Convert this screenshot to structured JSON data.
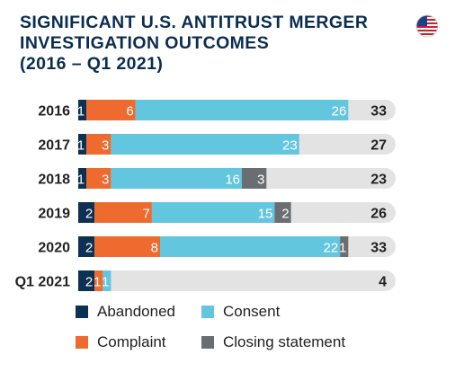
{
  "title_lines": [
    "SIGNIFICANT U.S. ANTITRUST MERGER",
    "INVESTIGATION OUTCOMES",
    "(2016 – Q1 2021)"
  ],
  "flag_icon": "us-flag-icon",
  "colors": {
    "Abandoned": "#0d3152",
    "Complaint": "#ef6a2e",
    "Consent": "#62c6de",
    "Closing statement": "#6b6e71",
    "track": "#e3e3e3",
    "title": "#0b2d4f"
  },
  "chart_data": {
    "type": "bar",
    "orientation": "horizontal",
    "stacked": true,
    "title": "SIGNIFICANT U.S. ANTITRUST MERGER INVESTIGATION OUTCOMES (2016 – Q1 2021)",
    "categories": [
      "2016",
      "2017",
      "2018",
      "2019",
      "2020",
      "Q1 2021"
    ],
    "series": [
      {
        "name": "Abandoned",
        "values": [
          1,
          1,
          1,
          2,
          2,
          2
        ]
      },
      {
        "name": "Complaint",
        "values": [
          6,
          3,
          3,
          7,
          8,
          1
        ]
      },
      {
        "name": "Consent",
        "values": [
          26,
          23,
          16,
          15,
          22,
          1
        ]
      },
      {
        "name": "Closing statement",
        "values": [
          0,
          0,
          3,
          2,
          1,
          0
        ]
      }
    ],
    "totals": [
      33,
      27,
      23,
      26,
      33,
      4
    ],
    "xlim": [
      0,
      35
    ],
    "grid": false,
    "legend_position": "bottom"
  }
}
